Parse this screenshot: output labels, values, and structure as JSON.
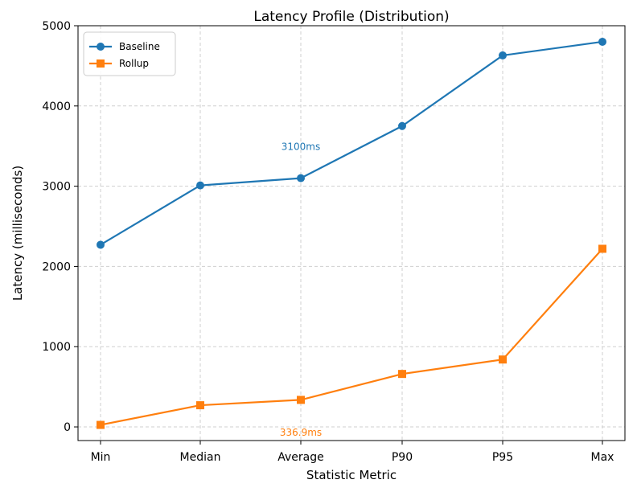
{
  "chart_data": {
    "type": "line",
    "title": "Latency Profile (Distribution)",
    "xlabel": "Statistic Metric",
    "ylabel": "Latency (milliseconds)",
    "categories": [
      "Min",
      "Median",
      "Average",
      "P90",
      "P95",
      "Max"
    ],
    "ylim": [
      -170,
      5000
    ],
    "yticks": [
      0,
      1000,
      2000,
      3000,
      4000,
      5000
    ],
    "grid": true,
    "legend_position": "top-left",
    "series": [
      {
        "name": "Baseline",
        "color": "#1f77b4",
        "marker": "circle",
        "values": [
          2270,
          3010,
          3100,
          3750,
          4630,
          4800
        ]
      },
      {
        "name": "Rollup",
        "color": "#ff7f0e",
        "marker": "square",
        "values": [
          25,
          270,
          336.9,
          660,
          840,
          2220
        ]
      }
    ],
    "annotations": [
      {
        "text": "3100ms",
        "category": "Average",
        "y": 3450,
        "series": "Baseline",
        "color": "#1f77b4"
      },
      {
        "text": "336.9ms",
        "category": "Average",
        "y": -110,
        "series": "Rollup",
        "color": "#ff7f0e"
      }
    ]
  }
}
